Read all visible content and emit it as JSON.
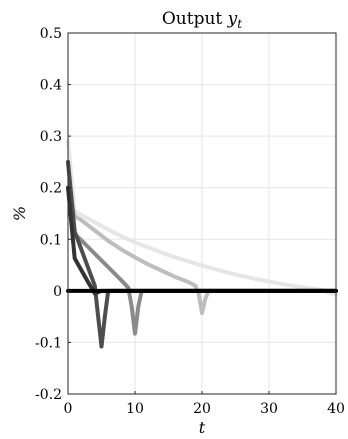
{
  "chart_data": {
    "type": "line",
    "title": "Output y_t",
    "title_main": "Output ",
    "title_var": "y",
    "title_sub": "t",
    "xlabel": "t",
    "ylabel": "%",
    "xlim": [
      0,
      40
    ],
    "ylim": [
      -0.2,
      0.5
    ],
    "xticks": [
      0,
      10,
      20,
      30,
      40
    ],
    "xtick_labels": [
      "0",
      "10",
      "20",
      "30",
      "40"
    ],
    "yticks": [
      -0.2,
      -0.1,
      0,
      0.1,
      0.2,
      0.3,
      0.4,
      0.5
    ],
    "ytick_labels": [
      "-0.2",
      "-0.1",
      "0",
      "0.1",
      "0.2",
      "0.3",
      "0.4",
      "0.5"
    ],
    "grid": true,
    "series": [
      {
        "color": "#e6e6e6",
        "x": [
          0,
          1,
          2,
          3,
          4,
          5,
          6,
          7,
          8,
          9,
          10,
          12,
          14,
          16,
          18,
          20,
          22,
          24,
          26,
          28,
          30,
          32,
          34,
          36,
          38,
          40
        ],
        "y": [
          0.29,
          0.155,
          0.147,
          0.14,
          0.133,
          0.126,
          0.119,
          0.112,
          0.106,
          0.1,
          0.094,
          0.084,
          0.074,
          0.065,
          0.057,
          0.049,
          0.042,
          0.035,
          0.029,
          0.023,
          0.018,
          0.013,
          0.009,
          0.005,
          0.002,
          -0.008
        ]
      },
      {
        "color": "#bdbdbd",
        "x": [
          0,
          1,
          2,
          3,
          4,
          5,
          6,
          8,
          10,
          12,
          14,
          16,
          18,
          19,
          19.5,
          20,
          20.5,
          21,
          22,
          25,
          30,
          35,
          40
        ],
        "y": [
          0.2,
          0.145,
          0.137,
          0.127,
          0.117,
          0.107,
          0.097,
          0.08,
          0.065,
          0.051,
          0.039,
          0.027,
          0.017,
          0.01,
          -0.005,
          -0.043,
          -0.015,
          0,
          0,
          0,
          0,
          0,
          0
        ]
      },
      {
        "color": "#8a8a8a",
        "x": [
          0,
          1,
          2,
          3,
          4,
          5,
          6,
          7,
          8,
          9,
          9.5,
          10,
          10.5,
          11,
          12,
          15,
          20,
          25,
          30,
          35,
          40
        ],
        "y": [
          0.2,
          0.11,
          0.098,
          0.085,
          0.072,
          0.059,
          0.046,
          0.033,
          0.02,
          0.006,
          -0.03,
          -0.083,
          -0.03,
          0,
          0,
          0,
          0,
          0,
          0,
          0,
          0
        ]
      },
      {
        "color": "#4d4d4d",
        "x": [
          0,
          1,
          2,
          3,
          4,
          4.5,
          5,
          5.5,
          6,
          7,
          10,
          15,
          20,
          25,
          30,
          35,
          40
        ],
        "y": [
          0.25,
          0.115,
          0.08,
          0.045,
          0.01,
          -0.05,
          -0.108,
          -0.05,
          0,
          0,
          0,
          0,
          0,
          0,
          0,
          0,
          0
        ]
      },
      {
        "color": "#333333",
        "x": [
          0,
          1,
          2,
          3,
          4,
          5,
          6,
          10,
          15,
          20,
          25,
          30,
          35,
          40
        ],
        "y": [
          0.2,
          0.063,
          0.04,
          0.017,
          -0.005,
          0,
          0,
          0,
          0,
          0,
          0,
          0,
          0,
          0
        ]
      },
      {
        "color": "#000000",
        "x": [
          0,
          5,
          10,
          15,
          20,
          25,
          30,
          35,
          40
        ],
        "y": [
          0,
          0,
          0,
          0,
          0,
          0,
          0,
          0,
          0
        ]
      }
    ]
  }
}
